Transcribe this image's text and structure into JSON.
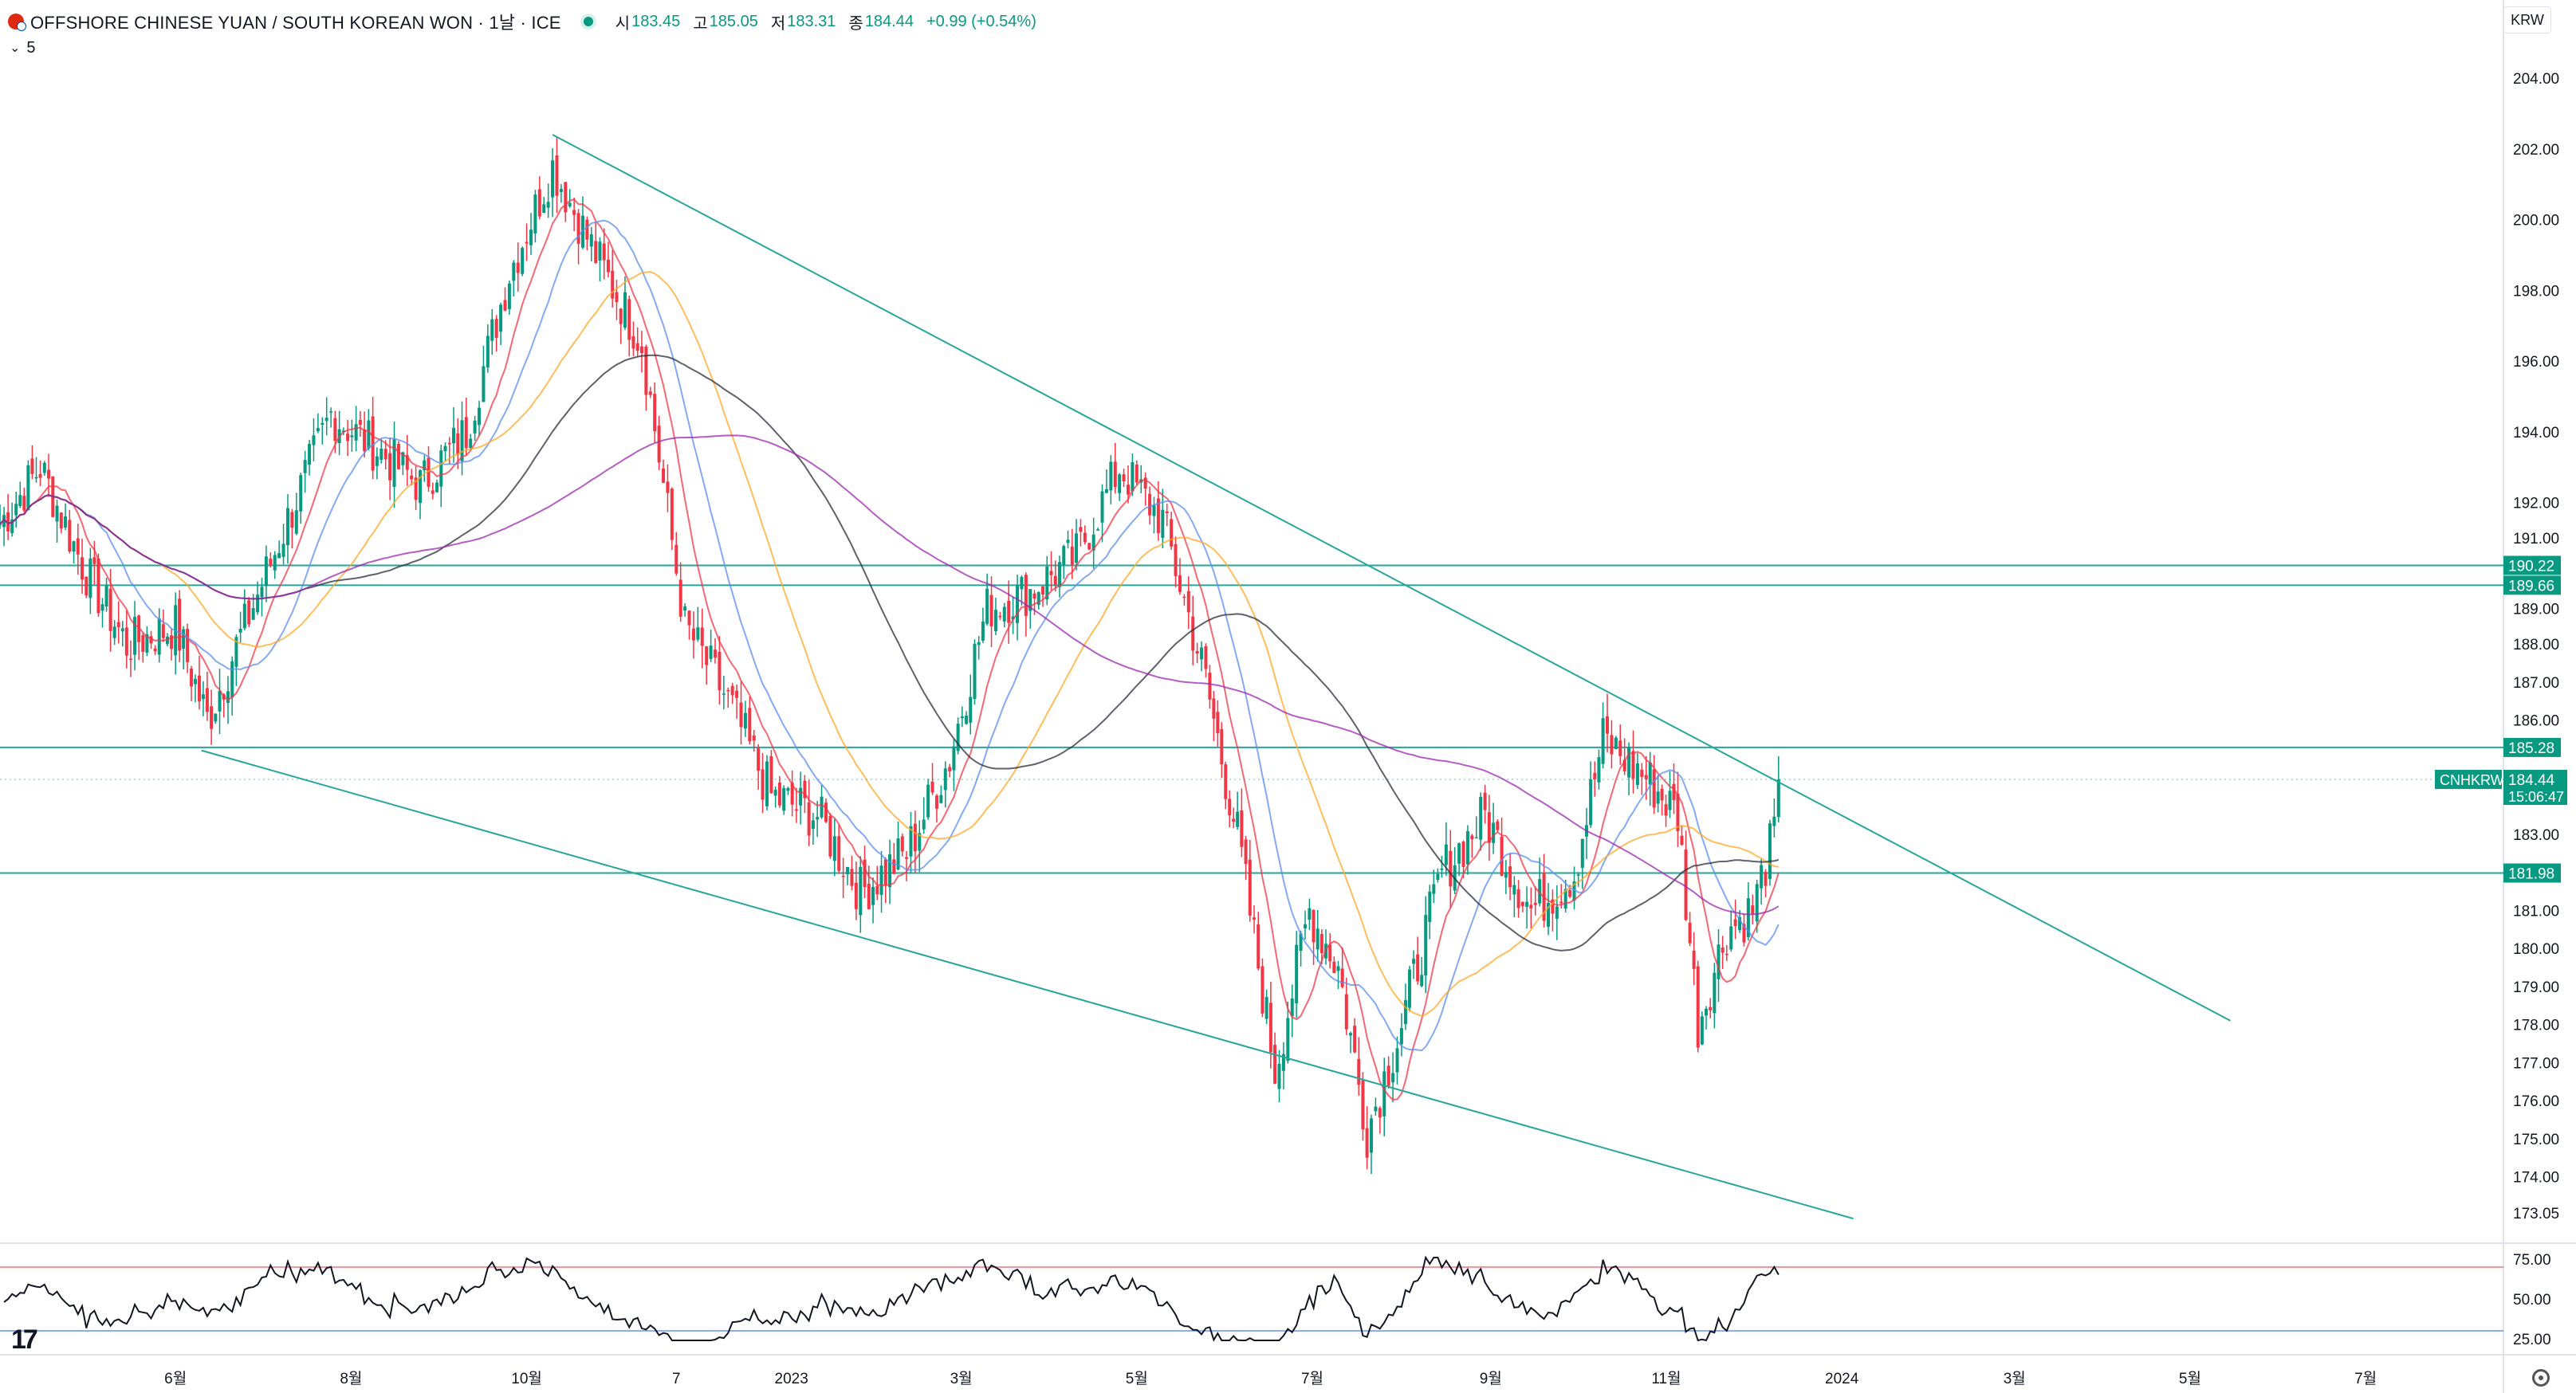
{
  "header": {
    "title": "OFFSHORE CHINESE YUAN / SOUTH KOREAN WON · 1날 · ICE",
    "open_label": "시",
    "open": "183.45",
    "high_label": "고",
    "high": "185.05",
    "low_label": "저",
    "low": "183.31",
    "close_label": "종",
    "close": "184.44",
    "change": "+0.99 (+0.54%)",
    "indicator_value": "5",
    "currency": "KRW"
  },
  "colors": {
    "up": "#089981",
    "down": "#f23645",
    "ma_fast": "#f23645",
    "ma_mid": "#5b8def",
    "ma_slow": "#ffa726",
    "ma_200": "#2a2e39",
    "ma_300": "#9c27b0",
    "trend": "#26a69a"
  },
  "chart_data": {
    "type": "candlestick",
    "symbol": "CNHKRW",
    "last_price": "184.44",
    "countdown": "15:06:47",
    "y_ticks": [
      "204.00",
      "202.00",
      "200.00",
      "198.00",
      "196.00",
      "194.00",
      "192.00",
      "191.00",
      "189.00",
      "188.00",
      "187.00",
      "186.00",
      "183.00",
      "181.00",
      "180.00",
      "179.00",
      "178.00",
      "177.00",
      "176.00",
      "175.00",
      "174.00",
      "173.05"
    ],
    "x_ticks": [
      "6월",
      "8월",
      "10월",
      "7",
      "2023",
      "3월",
      "5월",
      "7월",
      "9월",
      "11월",
      "2024",
      "3월",
      "5월",
      "7월"
    ],
    "horizontal_levels": [
      {
        "value": 190.22,
        "label": "190.22"
      },
      {
        "value": 189.66,
        "label": "189.66"
      },
      {
        "value": 185.28,
        "label": "185.28"
      },
      {
        "value": 181.98,
        "label": "181.98"
      }
    ],
    "rsi_ticks": [
      "75.00",
      "50.00",
      "25.00"
    ],
    "rsi_levels": [
      70,
      30
    ],
    "price_series": [
      {
        "date": "2022-04-01",
        "close": 191.4
      },
      {
        "date": "2022-04-15",
        "close": 193.0
      },
      {
        "date": "2022-05-01",
        "close": 190.0
      },
      {
        "date": "2022-05-15",
        "close": 188.0
      },
      {
        "date": "2022-06-01",
        "close": 188.5
      },
      {
        "date": "2022-06-12",
        "close": 186.0
      },
      {
        "date": "2022-06-25",
        "close": 188.5
      },
      {
        "date": "2022-07-10",
        "close": 191.5
      },
      {
        "date": "2022-07-25",
        "close": 194.5
      },
      {
        "date": "2022-08-10",
        "close": 193.5
      },
      {
        "date": "2022-08-25",
        "close": 192.5
      },
      {
        "date": "2022-09-10",
        "close": 194.0
      },
      {
        "date": "2022-09-25",
        "close": 198.5
      },
      {
        "date": "2022-10-10",
        "close": 201.5
      },
      {
        "date": "2022-10-25",
        "close": 199.0
      },
      {
        "date": "2022-11-10",
        "close": 196.5
      },
      {
        "date": "2022-11-25",
        "close": 188.5
      },
      {
        "date": "2022-12-10",
        "close": 186.5
      },
      {
        "date": "2022-12-25",
        "close": 184.0
      },
      {
        "date": "2023-01-10",
        "close": 183.5
      },
      {
        "date": "2023-01-25",
        "close": 181.5
      },
      {
        "date": "2023-02-10",
        "close": 182.5
      },
      {
        "date": "2023-02-25",
        "close": 185.0
      },
      {
        "date": "2023-03-10",
        "close": 189.0
      },
      {
        "date": "2023-03-25",
        "close": 189.5
      },
      {
        "date": "2023-04-10",
        "close": 190.5
      },
      {
        "date": "2023-04-25",
        "close": 193.0
      },
      {
        "date": "2023-05-10",
        "close": 191.5
      },
      {
        "date": "2023-05-25",
        "close": 187.0
      },
      {
        "date": "2023-06-05",
        "close": 183.0
      },
      {
        "date": "2023-06-18",
        "close": 176.8
      },
      {
        "date": "2023-06-30",
        "close": 181.0
      },
      {
        "date": "2023-07-10",
        "close": 179.5
      },
      {
        "date": "2023-07-20",
        "close": 175.2
      },
      {
        "date": "2023-08-01",
        "close": 178.0
      },
      {
        "date": "2023-08-15",
        "close": 182.0
      },
      {
        "date": "2023-08-30",
        "close": 183.5
      },
      {
        "date": "2023-09-15",
        "close": 181.0
      },
      {
        "date": "2023-09-30",
        "close": 182.0
      },
      {
        "date": "2023-10-10",
        "close": 185.5
      },
      {
        "date": "2023-10-25",
        "close": 184.5
      },
      {
        "date": "2023-11-05",
        "close": 183.5
      },
      {
        "date": "2023-11-12",
        "close": 178.0
      },
      {
        "date": "2023-11-22",
        "close": 180.5
      },
      {
        "date": "2023-12-01",
        "close": 181.0
      },
      {
        "date": "2023-12-10",
        "close": 183.45
      }
    ]
  }
}
